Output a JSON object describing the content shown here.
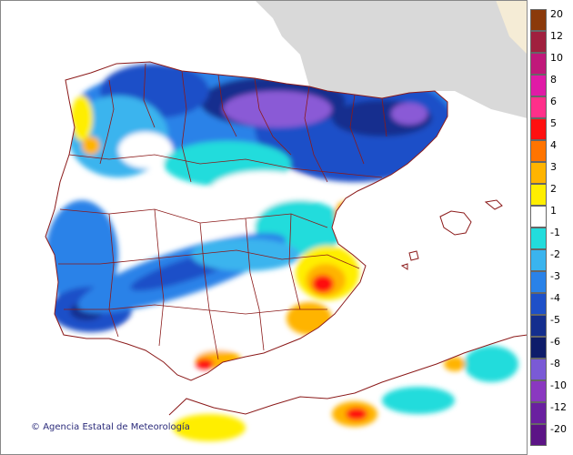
{
  "credit": "Agencia Estatal de Meteorología",
  "copyright_symbol": "©",
  "legend": {
    "title": "",
    "classes": [
      {
        "label": "20",
        "color": "#8b3a0b"
      },
      {
        "label": "12",
        "color": "#a0203e"
      },
      {
        "label": "10",
        "color": "#c0187a"
      },
      {
        "label": "8",
        "color": "#e01aa6"
      },
      {
        "label": "6",
        "color": "#ff2f8a"
      },
      {
        "label": "5",
        "color": "#ff1010"
      },
      {
        "label": "4",
        "color": "#ff7400"
      },
      {
        "label": "3",
        "color": "#ffb400"
      },
      {
        "label": "2",
        "color": "#ffee00"
      },
      {
        "label": "1",
        "color": "#ffffff"
      },
      {
        "label": "-1",
        "color": "#22dcdc"
      },
      {
        "label": "-2",
        "color": "#3ab4ee"
      },
      {
        "label": "-3",
        "color": "#2a82e8"
      },
      {
        "label": "-4",
        "color": "#1e50c8"
      },
      {
        "label": "-5",
        "color": "#142e8e"
      },
      {
        "label": "-6",
        "color": "#0e1c6a"
      },
      {
        "label": "-8",
        "color": "#7a5ad6"
      },
      {
        "label": "-10",
        "color": "#8a38c0"
      },
      {
        "label": "-12",
        "color": "#6a20a0"
      },
      {
        "label": "-20",
        "color": "#5c1486"
      }
    ]
  },
  "colors": {
    "sea": "#ffffff",
    "outside_land": "#d9d9d9",
    "border": "#8b1a1a",
    "coast": "#8b1a1a"
  }
}
